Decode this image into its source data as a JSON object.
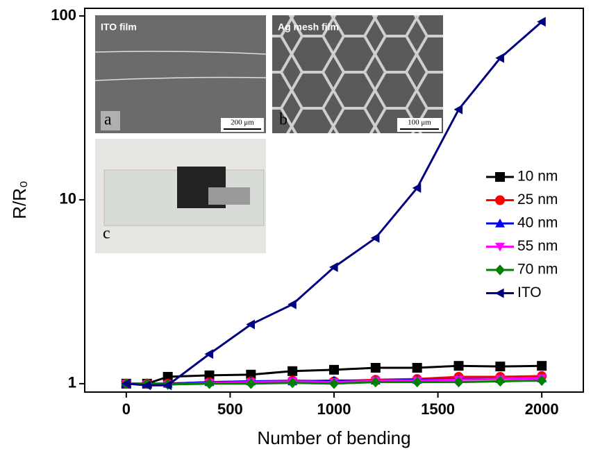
{
  "chart_data": {
    "type": "line",
    "y_label": "R/R₀",
    "x_label": "Number of bending",
    "log_y": true,
    "x": [
      0,
      100,
      200,
      400,
      600,
      800,
      1000,
      1200,
      1400,
      1600,
      1800,
      2000
    ],
    "xlim": [
      -200,
      2200
    ],
    "xticks": [
      0,
      500,
      1000,
      1500,
      2000
    ],
    "ylim": [
      0.9,
      110
    ],
    "yticks": [
      1,
      10,
      100
    ],
    "series": [
      {
        "name": "10 nm",
        "color": "#000000",
        "marker": "square",
        "values": [
          1,
          1,
          1.09,
          1.11,
          1.12,
          1.17,
          1.19,
          1.22,
          1.22,
          1.25,
          1.24,
          1.25
        ]
      },
      {
        "name": "25 nm",
        "color": "#ff0000",
        "marker": "circle",
        "values": [
          1,
          1,
          1,
          1.02,
          1.03,
          1.04,
          1.03,
          1.05,
          1.06,
          1.09,
          1.09,
          1.1
        ]
      },
      {
        "name": "40 nm",
        "color": "#0000ff",
        "marker": "triangle-up",
        "values": [
          1,
          1,
          1,
          1.02,
          1.03,
          1.03,
          1.04,
          1.04,
          1.05,
          1.06,
          1.06,
          1.07
        ]
      },
      {
        "name": "55 nm",
        "color": "#ff00ff",
        "marker": "triangle-down",
        "values": [
          1,
          0.99,
          0.99,
          1.01,
          1.02,
          1.03,
          1.02,
          1.04,
          1.04,
          1.05,
          1.06,
          1.07
        ]
      },
      {
        "name": "70 nm",
        "color": "#008000",
        "marker": "diamond",
        "values": [
          1,
          1,
          0.99,
          1,
          1,
          1.01,
          1,
          1.02,
          1.02,
          1.02,
          1.03,
          1.04
        ]
      },
      {
        "name": "ITO",
        "color": "#000080",
        "marker": "triangle-left",
        "values": [
          1,
          0.98,
          0.98,
          1.45,
          2.1,
          2.7,
          4.3,
          6.2,
          11.6,
          31,
          59,
          93
        ]
      }
    ],
    "insets": [
      {
        "title": "ITO film",
        "letter": "a",
        "scale": "200 μm"
      },
      {
        "title": "Ag mesh film",
        "letter": "b",
        "scale": "100 μm"
      },
      {
        "letter": "c"
      }
    ]
  }
}
